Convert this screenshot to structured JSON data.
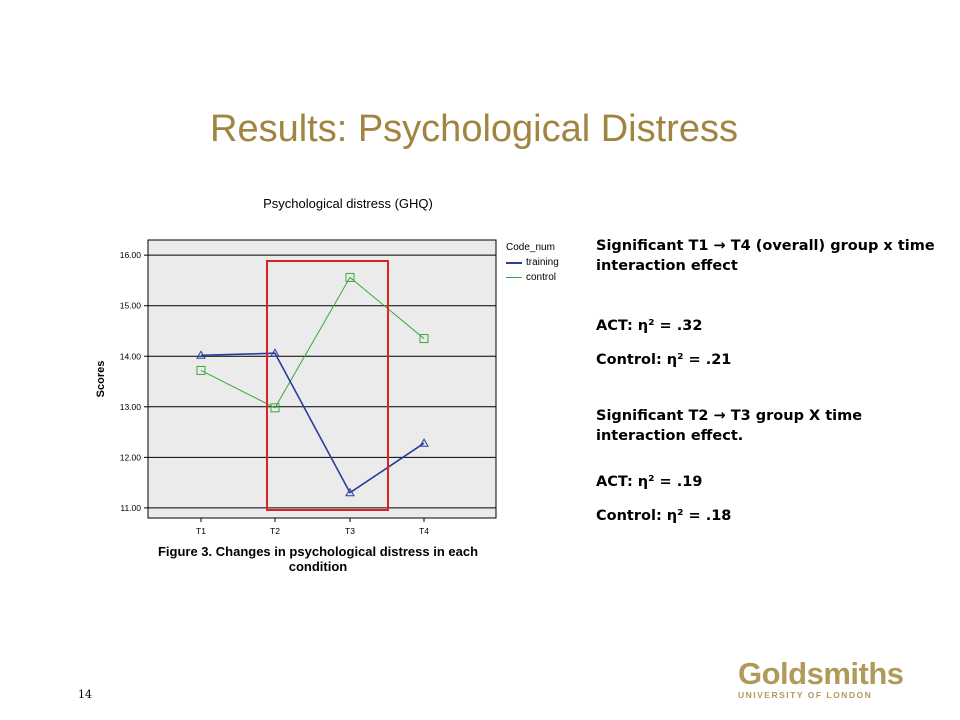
{
  "slide": {
    "title": "Results: Psychological Distress",
    "page_number": "14",
    "logo": {
      "name": "Goldsmiths",
      "sub": "UNIVERSITY OF LONDON"
    }
  },
  "figure": {
    "caption": "Figure 3. Changes in psychological distress in each condition",
    "highlight_color": "#dd2222"
  },
  "stats": {
    "line1": "Significant T1 → T4 (overall) group x time interaction effect",
    "line2": "ACT: η² = .32",
    "line3": "Control: η² = .21",
    "line4": "Significant T2 → T3 group X time interaction effect.",
    "line5": "ACT: η² = .19",
    "line6": "Control: η² = .18"
  },
  "chart_data": {
    "type": "line",
    "title": "Psychological distress (GHQ)",
    "xlabel": "",
    "ylabel": "Scores",
    "categories": [
      "T1",
      "T2",
      "T3",
      "T4"
    ],
    "ylim": [
      10.8,
      16.3
    ],
    "yticks": [
      "11.00",
      "12.00",
      "13.00",
      "14.00",
      "15.00",
      "16.00"
    ],
    "grid": true,
    "legend": {
      "title": "Code_num",
      "position": "top-right"
    },
    "series": [
      {
        "name": "training",
        "values": [
          14.02,
          14.06,
          11.3,
          12.28
        ],
        "color": "#2a3d9e",
        "marker": "triangle"
      },
      {
        "name": "control",
        "values": [
          13.72,
          12.98,
          15.56,
          14.35
        ],
        "color": "#3aa83a",
        "marker": "square"
      }
    ]
  }
}
